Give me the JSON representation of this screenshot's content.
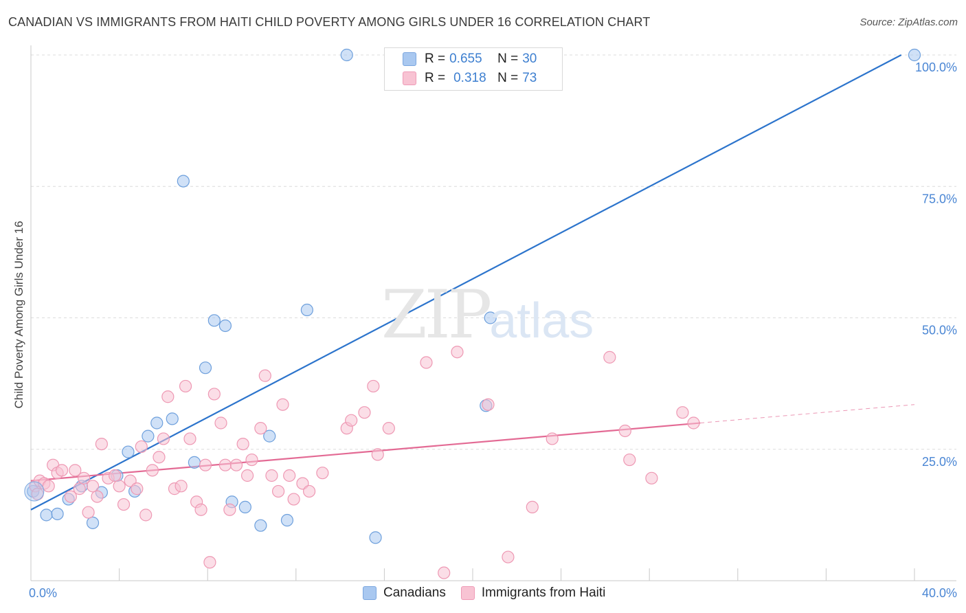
{
  "title": "CANADIAN VS IMMIGRANTS FROM HAITI CHILD POVERTY AMONG GIRLS UNDER 16 CORRELATION CHART",
  "source": "Source: ZipAtlas.com",
  "watermark": {
    "zip": "ZIP",
    "atlas": "atlas"
  },
  "legend": {
    "rows": [
      {
        "r_label": "R = ",
        "r_value": "0.655",
        "n_label": "N = ",
        "n_value": "30",
        "color": "#a9c8f0",
        "border": "#7aa6df"
      },
      {
        "r_label": "R = ",
        "r_value": "0.318",
        "n_label": "N = ",
        "n_value": "73",
        "color": "#f8c3d3",
        "border": "#ef9ab6"
      }
    ]
  },
  "bottom_legend": {
    "canadians": "Canadians",
    "haiti": "Immigrants from Haiti"
  },
  "chart_data": {
    "type": "scatter",
    "title": "CANADIAN VS IMMIGRANTS FROM HAITI CHILD POVERTY AMONG GIRLS UNDER 16 CORRELATION CHART",
    "xlabel": "",
    "ylabel": "Child Poverty Among Girls Under 16",
    "xlim": [
      0,
      40
    ],
    "ylim": [
      0,
      100
    ],
    "x_tick_labels": [
      {
        "value": 0,
        "label": "0.0%"
      },
      {
        "value": 40,
        "label": "40.0%"
      }
    ],
    "y_tick_labels": [
      {
        "value": 25,
        "label": "25.0%"
      },
      {
        "value": 50,
        "label": "50.0%"
      },
      {
        "value": 75,
        "label": "75.0%"
      },
      {
        "value": 100,
        "label": "100.0%"
      }
    ],
    "grid": true,
    "legend_position": "top-center",
    "series": [
      {
        "name": "Canadians",
        "color": "#a9c8f0",
        "stroke": "#6d9fdc",
        "trend_color": "#2c74cc",
        "trend": {
          "x1": 0,
          "y1": 13.5,
          "x2": 39.4,
          "y2": 100
        },
        "points": [
          [
            0.1,
            17
          ],
          [
            0.7,
            12.5
          ],
          [
            1.2,
            12.7
          ],
          [
            1.7,
            15.5
          ],
          [
            2.3,
            18
          ],
          [
            2.8,
            11
          ],
          [
            3.2,
            16.8
          ],
          [
            3.9,
            20
          ],
          [
            4.4,
            24.5
          ],
          [
            4.7,
            17
          ],
          [
            5.3,
            27.5
          ],
          [
            5.7,
            30
          ],
          [
            6.4,
            30.8
          ],
          [
            6.9,
            76
          ],
          [
            7.4,
            22.5
          ],
          [
            7.9,
            40.5
          ],
          [
            8.3,
            49.5
          ],
          [
            8.8,
            48.5
          ],
          [
            9.1,
            15
          ],
          [
            9.7,
            14
          ],
          [
            10.4,
            10.5
          ],
          [
            10.8,
            27.5
          ],
          [
            11.6,
            11.5
          ],
          [
            12.5,
            51.5
          ],
          [
            14.3,
            100
          ],
          [
            15.6,
            8.2
          ],
          [
            19.9,
            100
          ],
          [
            20.6,
            33.3
          ],
          [
            20.8,
            50
          ],
          [
            40.0,
            100
          ]
        ]
      },
      {
        "name": "Immigrants from Haiti",
        "color": "#f8c3d3",
        "stroke": "#ee98b3",
        "trend_color": "#e36a94",
        "trend": {
          "x1": 0,
          "y1": 19,
          "x2": 30.3,
          "y2": 30
        },
        "trend_dashed": {
          "x1": 30.3,
          "y1": 30,
          "x2": 40,
          "y2": 33.5
        },
        "points": [
          [
            0.2,
            18
          ],
          [
            0.4,
            19
          ],
          [
            0.6,
            18.5
          ],
          [
            0.8,
            18
          ],
          [
            1.0,
            22
          ],
          [
            1.2,
            20.5
          ],
          [
            1.4,
            21
          ],
          [
            1.8,
            16
          ],
          [
            2.0,
            21
          ],
          [
            2.2,
            17.5
          ],
          [
            2.4,
            19.5
          ],
          [
            2.6,
            13
          ],
          [
            2.8,
            18
          ],
          [
            3.0,
            16
          ],
          [
            3.2,
            26
          ],
          [
            3.5,
            19.5
          ],
          [
            3.8,
            20
          ],
          [
            4.0,
            18
          ],
          [
            4.2,
            14.5
          ],
          [
            4.5,
            19
          ],
          [
            4.8,
            17.5
          ],
          [
            5.0,
            25.5
          ],
          [
            5.2,
            12.5
          ],
          [
            5.5,
            21
          ],
          [
            5.8,
            23.5
          ],
          [
            6.0,
            27
          ],
          [
            6.2,
            35
          ],
          [
            6.5,
            17.5
          ],
          [
            6.8,
            18
          ],
          [
            7.0,
            37
          ],
          [
            7.2,
            27
          ],
          [
            7.5,
            15
          ],
          [
            7.7,
            13.5
          ],
          [
            7.9,
            22
          ],
          [
            8.1,
            3.5
          ],
          [
            8.3,
            35.5
          ],
          [
            8.6,
            30
          ],
          [
            8.8,
            22
          ],
          [
            9.0,
            13.5
          ],
          [
            9.3,
            22
          ],
          [
            9.6,
            26
          ],
          [
            9.8,
            20
          ],
          [
            10.0,
            23
          ],
          [
            10.4,
            29
          ],
          [
            10.6,
            39
          ],
          [
            10.9,
            20
          ],
          [
            11.2,
            17
          ],
          [
            11.4,
            33.5
          ],
          [
            11.7,
            20
          ],
          [
            11.9,
            15.5
          ],
          [
            12.3,
            18.5
          ],
          [
            12.6,
            17
          ],
          [
            13.2,
            20.5
          ],
          [
            14.3,
            29
          ],
          [
            14.5,
            30.5
          ],
          [
            15.1,
            32
          ],
          [
            15.5,
            37
          ],
          [
            15.7,
            24
          ],
          [
            16.2,
            29
          ],
          [
            17.9,
            41.5
          ],
          [
            18.7,
            1.5
          ],
          [
            19.3,
            43.5
          ],
          [
            20.7,
            33.5
          ],
          [
            21.6,
            4.5
          ],
          [
            22.7,
            14
          ],
          [
            23.6,
            27
          ],
          [
            26.2,
            42.5
          ],
          [
            26.9,
            28.5
          ],
          [
            27.1,
            23
          ],
          [
            28.1,
            19.5
          ],
          [
            29.5,
            32
          ],
          [
            30.0,
            30
          ],
          [
            0.3,
            16.5
          ]
        ]
      }
    ]
  }
}
